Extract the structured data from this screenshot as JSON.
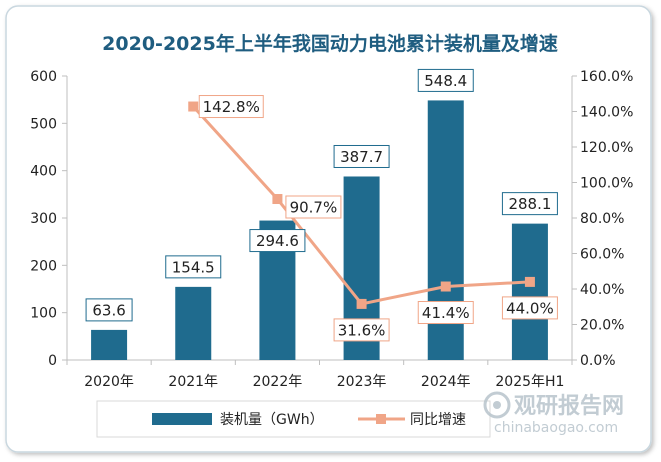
{
  "chart_data": {
    "type": "bar+line",
    "title": "2020-2025年上半年我国动力电池累计装机量及增速",
    "categories": [
      "2020年",
      "2021年",
      "2022年",
      "2023年",
      "2024年",
      "2025年H1"
    ],
    "series": [
      {
        "name": "装机量（GWh）",
        "type": "bar",
        "axis": "left",
        "values": [
          63.6,
          154.5,
          294.6,
          387.7,
          548.4,
          288.1
        ],
        "labels": [
          "63.6",
          "154.5",
          "294.6",
          "387.7",
          "548.4",
          "288.1"
        ]
      },
      {
        "name": "同比增速",
        "type": "line",
        "axis": "right",
        "values": [
          null,
          142.8,
          90.7,
          31.6,
          41.4,
          44.0
        ],
        "labels": [
          "",
          "142.8%",
          "90.7%",
          "31.6%",
          "41.4%",
          "44.0%"
        ]
      }
    ],
    "y_left": {
      "min": 0,
      "max": 600,
      "ticks": [
        "0",
        "100",
        "200",
        "300",
        "400",
        "500",
        "600"
      ]
    },
    "y_right": {
      "min": 0,
      "max": 160,
      "ticks": [
        "0.0%",
        "20.0%",
        "40.0%",
        "60.0%",
        "80.0%",
        "100.0%",
        "120.0%",
        "140.0%",
        "160.0%"
      ]
    },
    "legend_position": "bottom-left",
    "colors": {
      "bar": "#1f6b8e",
      "line": "#f0a587",
      "marker": "#f0a587",
      "title": "#1f5d80",
      "frame": "#c9d7df"
    }
  },
  "watermark": {
    "brand": "观研报告网",
    "url": "chinabaogao.com"
  }
}
